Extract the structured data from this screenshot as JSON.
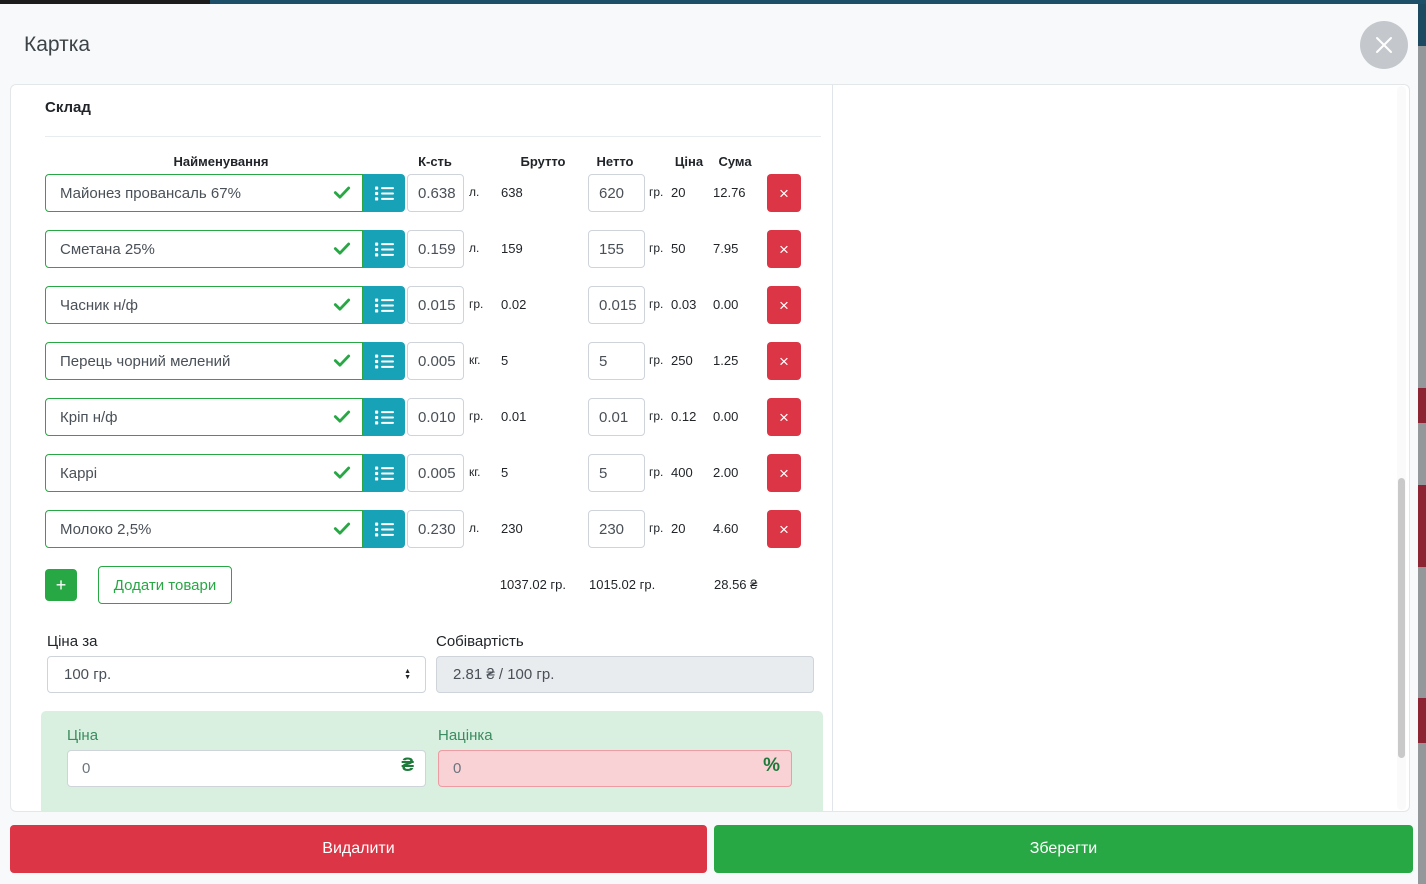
{
  "header": {
    "title": "Картка"
  },
  "composition": {
    "section_title": "Склад",
    "columns": {
      "name": "Найменування",
      "qty": "К-сть",
      "brutto": "Брутто",
      "netto": "Нетто",
      "price": "Ціна",
      "sum": "Сума"
    },
    "rows": [
      {
        "name": "Майонез провансаль 67%",
        "qty": "0.638",
        "qty_unit": "л.",
        "brutto": "638",
        "netto": "620",
        "netto_unit": "гр.",
        "price": "20",
        "sum": "12.76"
      },
      {
        "name": "Сметана 25%",
        "qty": "0.159",
        "qty_unit": "л.",
        "brutto": "159",
        "netto": "155",
        "netto_unit": "гр.",
        "price": "50",
        "sum": "7.95"
      },
      {
        "name": "Часник н/ф",
        "qty": "0.015",
        "qty_unit": "гр.",
        "brutto": "0.02",
        "netto": "0.015",
        "netto_unit": "гр.",
        "price": "0.03",
        "sum": "0.00"
      },
      {
        "name": "Перець чорний мелений",
        "qty": "0.005",
        "qty_unit": "кг.",
        "brutto": "5",
        "netto": "5",
        "netto_unit": "гр.",
        "price": "250",
        "sum": "1.25"
      },
      {
        "name": "Кріп н/ф",
        "qty": "0.010",
        "qty_unit": "гр.",
        "brutto": "0.01",
        "netto": "0.01",
        "netto_unit": "гр.",
        "price": "0.12",
        "sum": "0.00"
      },
      {
        "name": "Каррі",
        "qty": "0.005",
        "qty_unit": "кг.",
        "brutto": "5",
        "netto": "5",
        "netto_unit": "гр.",
        "price": "400",
        "sum": "2.00"
      },
      {
        "name": "Молоко 2,5%",
        "qty": "0.230",
        "qty_unit": "л.",
        "brutto": "230",
        "netto": "230",
        "netto_unit": "гр.",
        "price": "20",
        "sum": "4.60"
      }
    ],
    "remove_row_icon": "×",
    "add_plus_label": "+",
    "add_button_label": "Додати товари",
    "totals": {
      "brutto": "1037.02 гр.",
      "netto": "1015.02 гр.",
      "sum": "28.56 ₴"
    }
  },
  "pricing": {
    "price_per_label": "Ціна за",
    "price_per_value": "100 гр.",
    "cost_label": "Собівартість",
    "cost_value": "2.81 ₴ / 100 гр.",
    "price_label": "Ціна",
    "price_value": "0",
    "price_currency": "₴",
    "markup_label": "Націнка",
    "markup_value": "0",
    "markup_unit": "%"
  },
  "footer": {
    "delete_label": "Видалити",
    "save_label": "Зберегти"
  },
  "colors": {
    "success_green": "#28a745",
    "info_teal": "#17a2b8",
    "danger_red": "#dc3545",
    "panel_green_bg": "#d9efe0",
    "markup_pink_bg": "#f8d2d5",
    "page_bg": "#f8f9fa"
  }
}
